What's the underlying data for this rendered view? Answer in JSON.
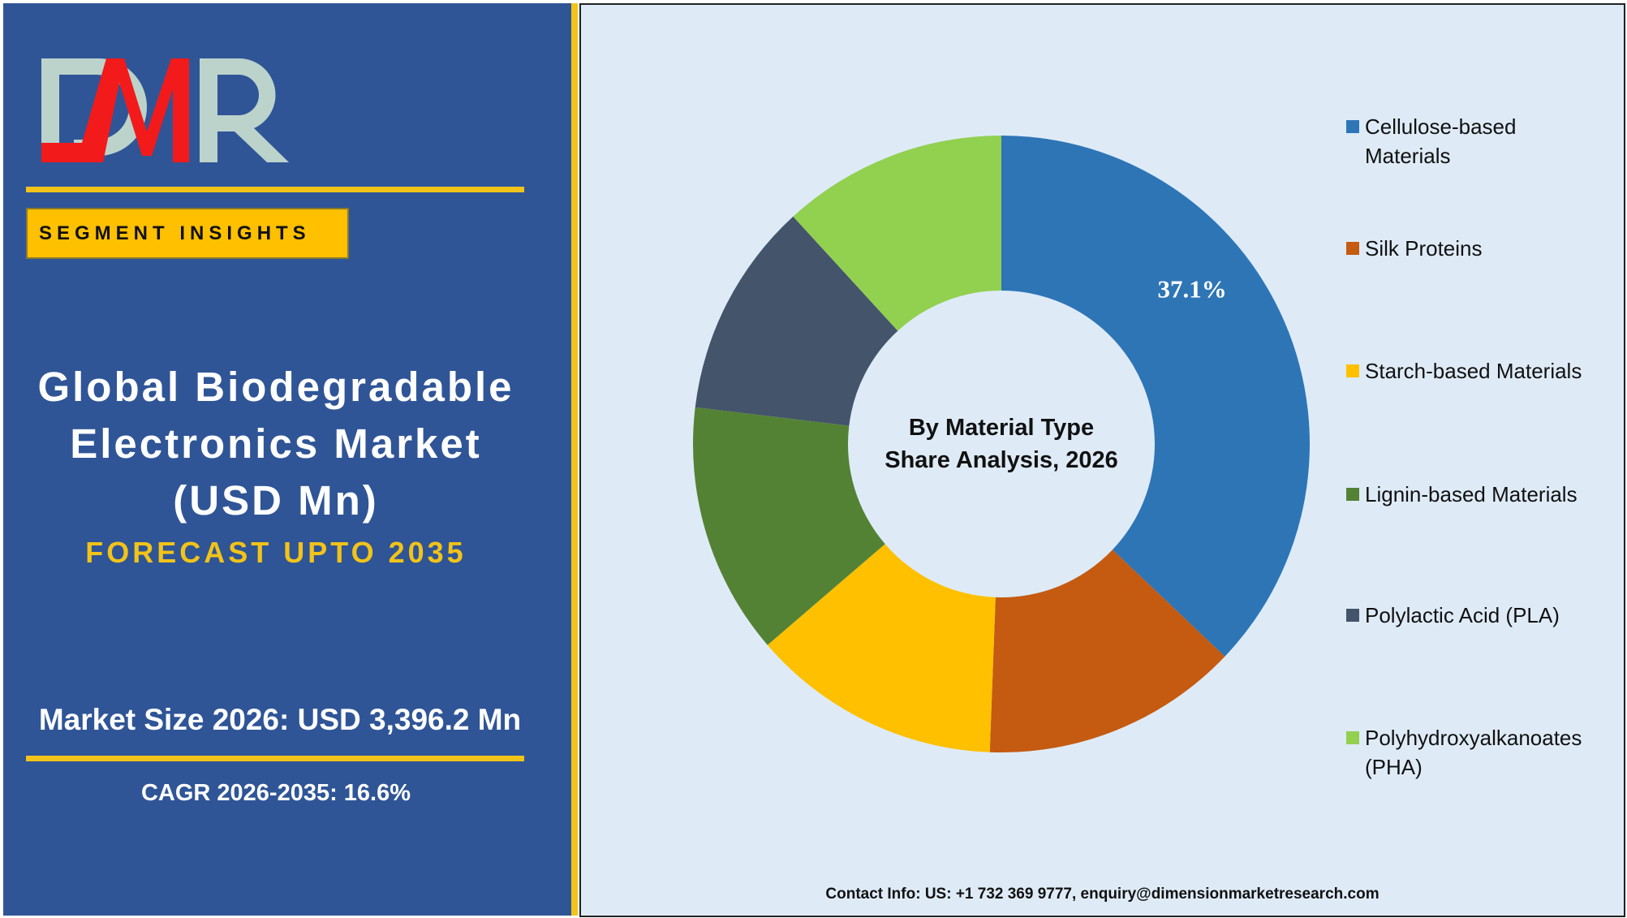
{
  "brand": {
    "logo_text": "DMR"
  },
  "left_panel": {
    "segment_label": "SEGMENT INSIGHTS",
    "title_lines": [
      "Global Biodegradable",
      "Electronics Market",
      "(USD Mn)"
    ],
    "forecast": "FORECAST UPTO 2035",
    "market_size": "Market Size 2026: USD 3,396.2 Mn",
    "cagr": "CAGR 2026-2035: 16.6%"
  },
  "colors": {
    "panel_blue": "#2F5597",
    "accent_yellow": "#F2C318",
    "chart_bg": "#DEEBF7"
  },
  "chart_data": {
    "type": "pie",
    "variant": "donut",
    "center_title": [
      "By Material Type",
      "Share Analysis, 2026"
    ],
    "categories": [
      "Cellulose-based Materials",
      "Silk Proteins",
      "Starch-based Materials",
      "Lignin-based Materials",
      "Polylactic Acid (PLA)",
      "Polyhydroxyalkanoates (PHA)"
    ],
    "legend_lines": [
      [
        "Cellulose-based",
        "Materials"
      ],
      [
        "Silk Proteins"
      ],
      [
        "Starch-based Materials"
      ],
      [
        "Lignin-based Materials"
      ],
      [
        "Polylactic Acid (PLA)"
      ],
      [
        "Polyhydroxyalkanoates",
        "(PHA)"
      ]
    ],
    "values": [
      37.1,
      13.5,
      13.1,
      13.2,
      11.3,
      11.8
    ],
    "colors": [
      "#2E75B6",
      "#C55A11",
      "#FFC000",
      "#548235",
      "#44546A",
      "#92D050"
    ],
    "data_labels": [
      "37.1%",
      "",
      "",
      "",
      "",
      ""
    ],
    "legend_position": "right"
  },
  "footer": {
    "contact": "Contact Info: US: +1 732 369 9777, enquiry@dimensionmarketresearch.com"
  }
}
